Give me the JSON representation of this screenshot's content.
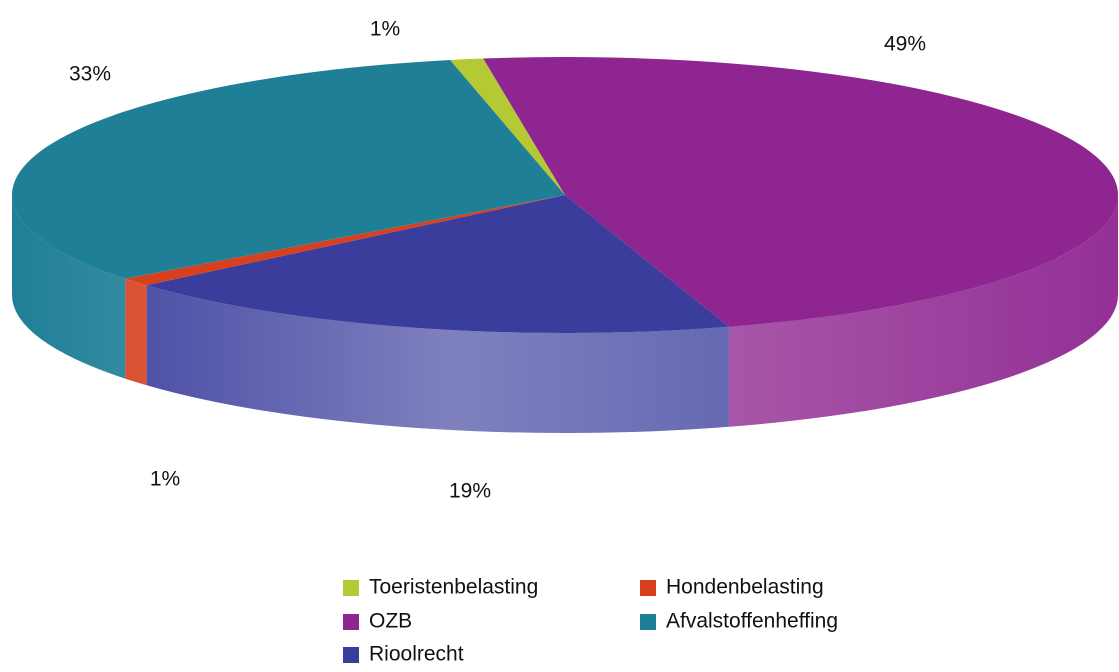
{
  "chart_data": {
    "type": "pie",
    "categories": [
      "Toeristenbelasting",
      "OZB",
      "Rioolrecht",
      "Hondenbelasting",
      "Afvalstoffenheffing"
    ],
    "values": [
      1,
      49,
      19,
      1,
      33
    ],
    "value_labels": [
      "1%",
      "49%",
      "19%",
      "1%",
      "33%"
    ],
    "colors": [
      "#b5c935",
      "#8e2590",
      "#3a3d9c",
      "#d6401f",
      "#1f7f96"
    ]
  }
}
